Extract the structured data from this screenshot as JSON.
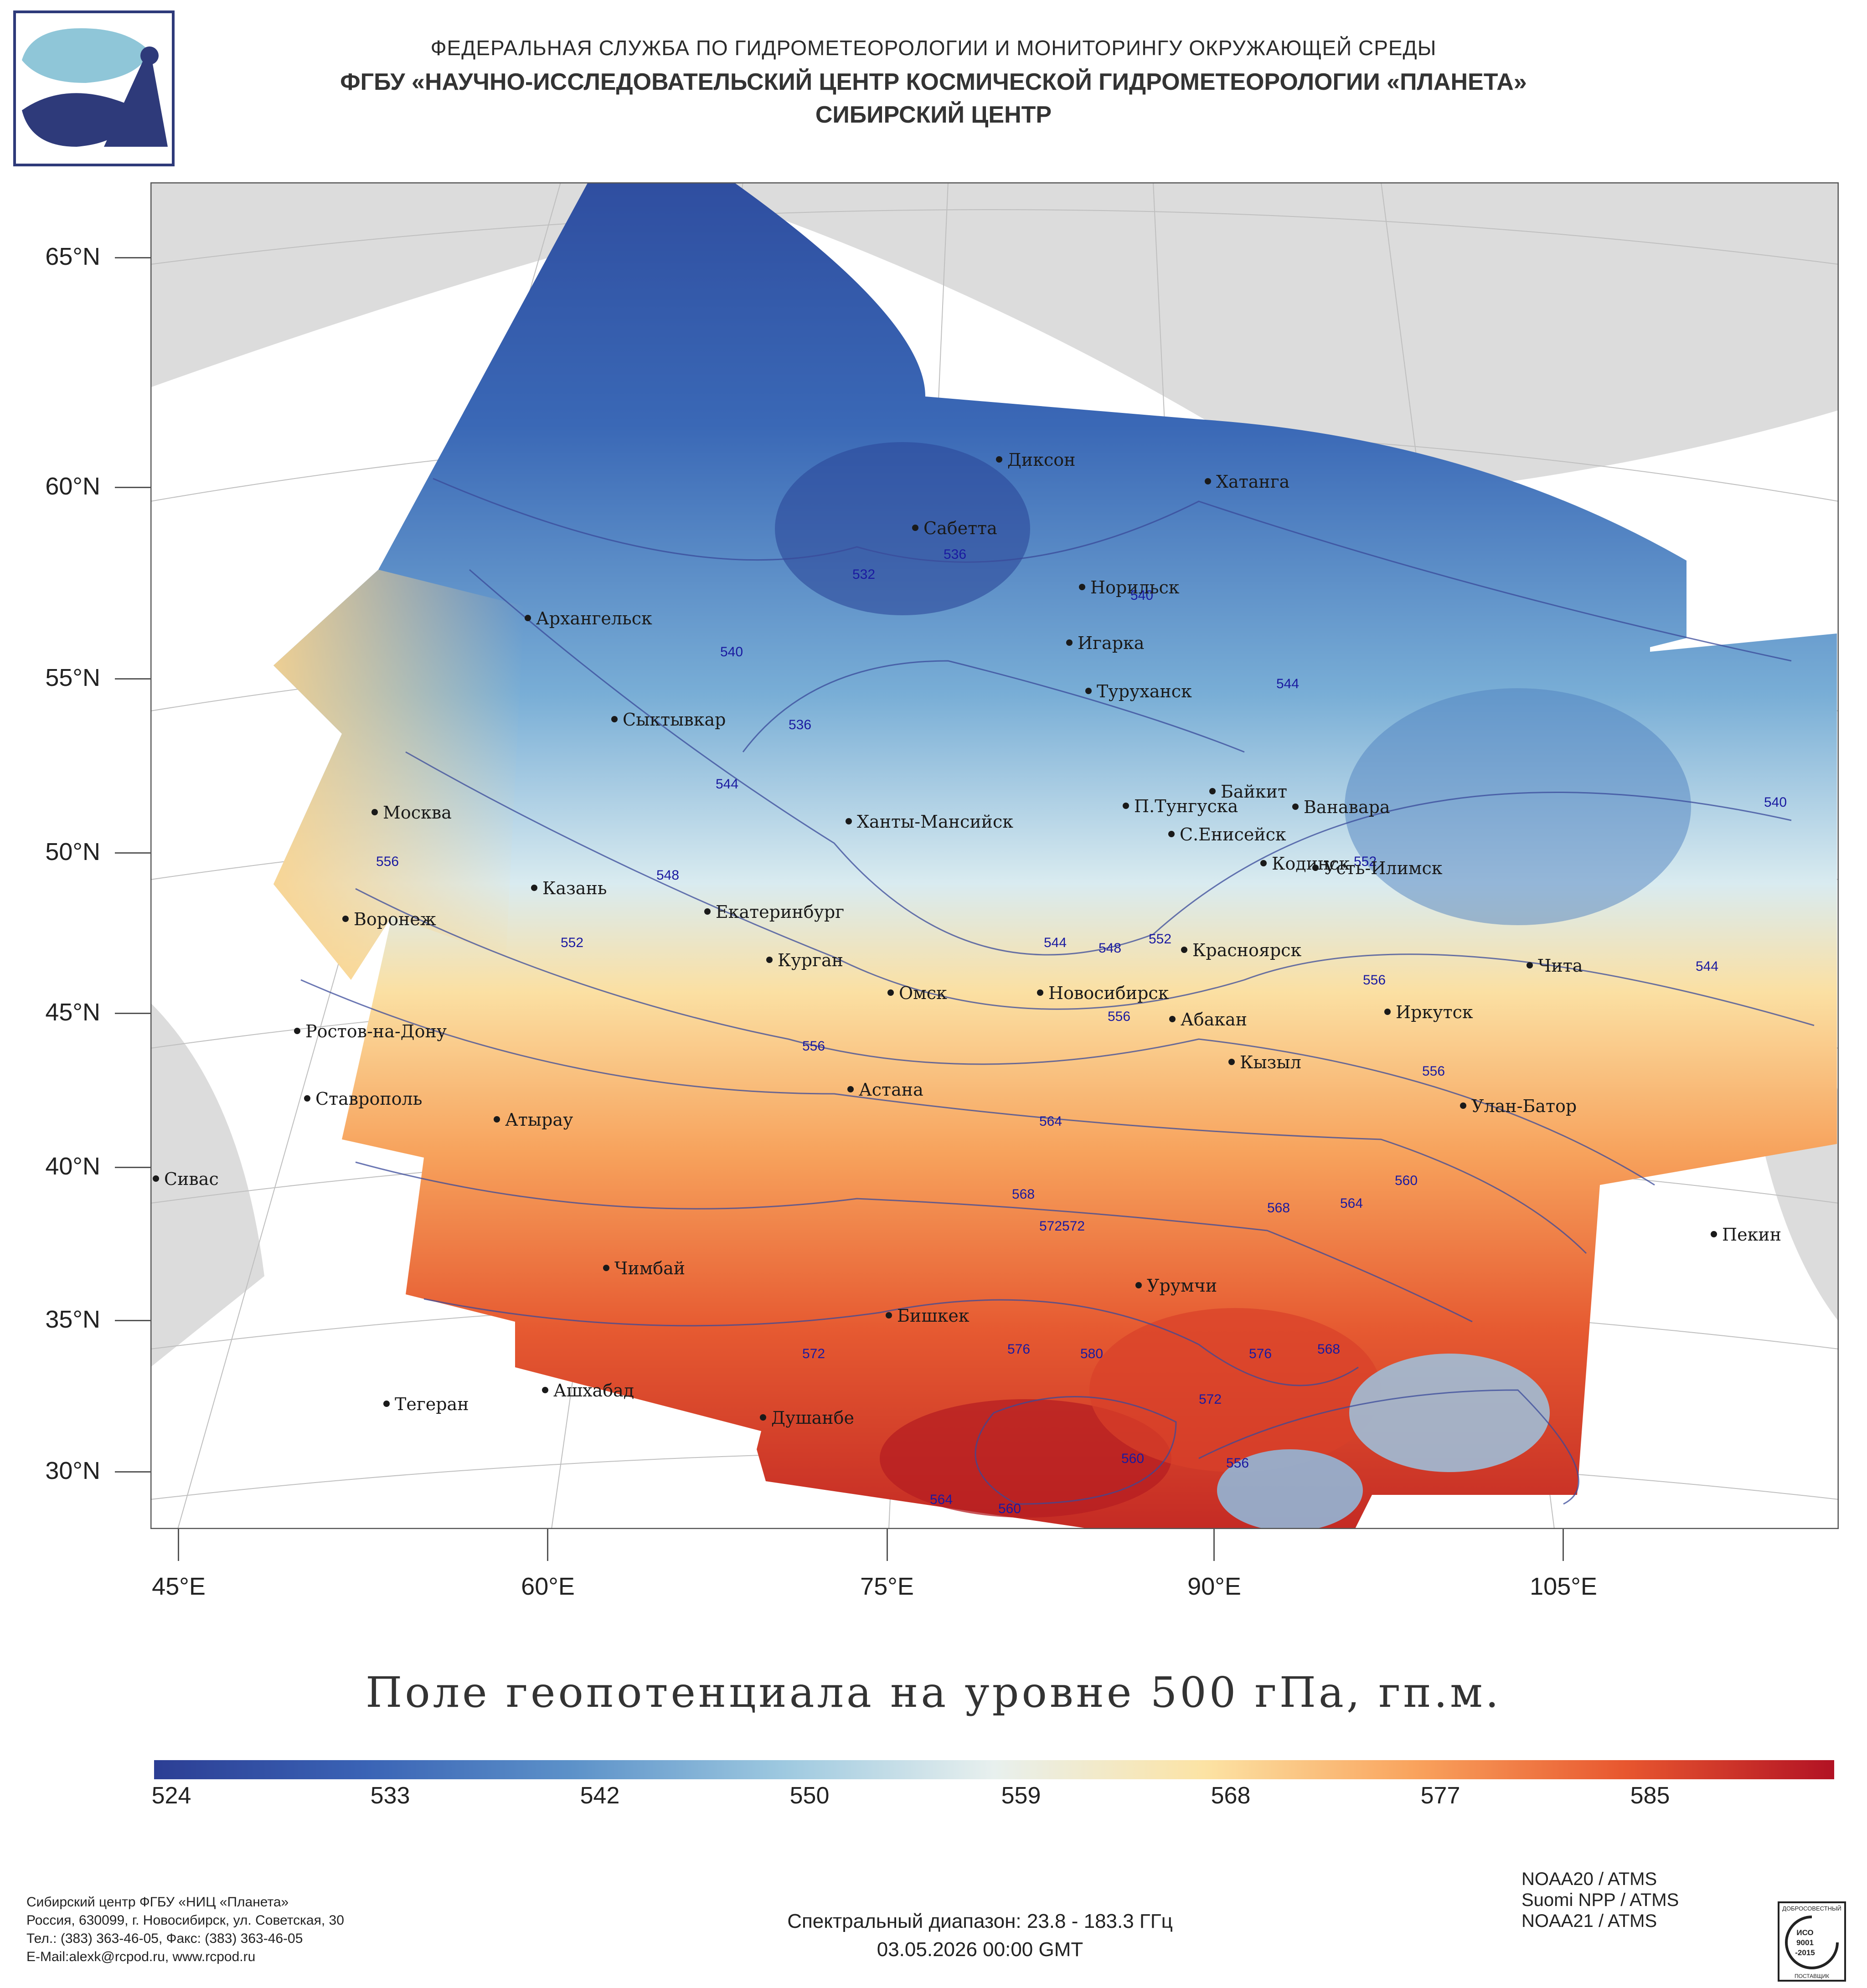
{
  "header": {
    "line1": "ФЕДЕРАЛЬНАЯ СЛУЖБА ПО ГИДРОМЕТЕОРОЛОГИИ И МОНИТОРИНГУ ОКРУЖАЮЩЕЙ СРЕДЫ",
    "line2": "ФГБУ «НАУЧНО-ИССЛЕДОВАТЕЛЬСКИЙ ЦЕНТР КОСМИЧЕСКОЙ ГИДРОМЕТЕОРОЛОГИИ «ПЛАНЕТА»",
    "line3": "СИБИРСКИЙ ЦЕНТР",
    "logo_icon": "planeta-logo-icon"
  },
  "map": {
    "lat_labels": [
      "65°N",
      "60°N",
      "55°N",
      "50°N",
      "45°N",
      "40°N",
      "35°N",
      "30°N"
    ],
    "lon_labels": [
      "45°E",
      "60°E",
      "75°E",
      "90°E",
      "105°E"
    ],
    "cities": [
      "Диксон",
      "Хатанга",
      "Сабетта",
      "Норильск",
      "Архангельск",
      "Игарка",
      "Туруханск",
      "Сыктывкар",
      "Байкит",
      "Москва",
      "Ханты-Мансийск",
      "П.Тунгуска",
      "Ванавара",
      "С.Енисейск",
      "Казань",
      "Кодинск",
      "Усть-Илимск",
      "Воронеж",
      "Екатеринбург",
      "Красноярск",
      "Курган",
      "Чита",
      "Омск",
      "Новосибирск",
      "Ростов-на-Дону",
      "Абакан",
      "Иркутск",
      "Кызыл",
      "Астана",
      "Ставрополь",
      "Улан-Батор",
      "Атырау",
      "Сивас",
      "Пекин",
      "Чимбай",
      "Урумчи",
      "Бишкек",
      "Ашхабад",
      "Тегеран",
      "Душанбе"
    ],
    "contour_labels": [
      "532",
      "536",
      "540",
      "536",
      "544",
      "540",
      "544",
      "540",
      "544",
      "552",
      "556",
      "548",
      "552",
      "544",
      "548",
      "552",
      "556",
      "556",
      "556",
      "556",
      "564",
      "568",
      "572",
      "572",
      "564",
      "560",
      "568",
      "572",
      "576",
      "580",
      "576",
      "568",
      "572",
      "560",
      "556",
      "560",
      "564"
    ]
  },
  "title": "Поле геопотенциала на уровне 500 гПа, гп.м.",
  "colorbar": {
    "ticks": [
      "524",
      "533",
      "542",
      "550",
      "559",
      "568",
      "577",
      "585"
    ],
    "colors": [
      "#2c3e94",
      "#3a63b5",
      "#5d92c9",
      "#9ec9e0",
      "#e8f0ee",
      "#fce3a4",
      "#f9a35d",
      "#e8572f",
      "#b21224"
    ]
  },
  "footer": {
    "left": [
      "Сибирский центр ФГБУ «НИЦ «Планета»",
      "Россия, 630099, г. Новосибирск, ул. Советская, 30",
      "Тел.: (383) 363-46-05, Факс: (383) 363-46-05",
      "E-Mail:alexk@rcpod.ru, www.rcpod.ru"
    ],
    "spectral": "Спектральный диапазон: 23.8 - 183.3 ГГц",
    "datetime": "03.05.2026 00:00 GMT",
    "sources": [
      "NOAA20 / ATMS",
      "Suomi NPP / ATMS",
      "NOAA21 / ATMS"
    ],
    "iso": {
      "top": "ДОБРОСОВЕСТНЫЙ",
      "l1": "ИСО",
      "l2": "9001",
      "l3": "-2015",
      "bottom": "ПОСТАВЩИК"
    }
  }
}
